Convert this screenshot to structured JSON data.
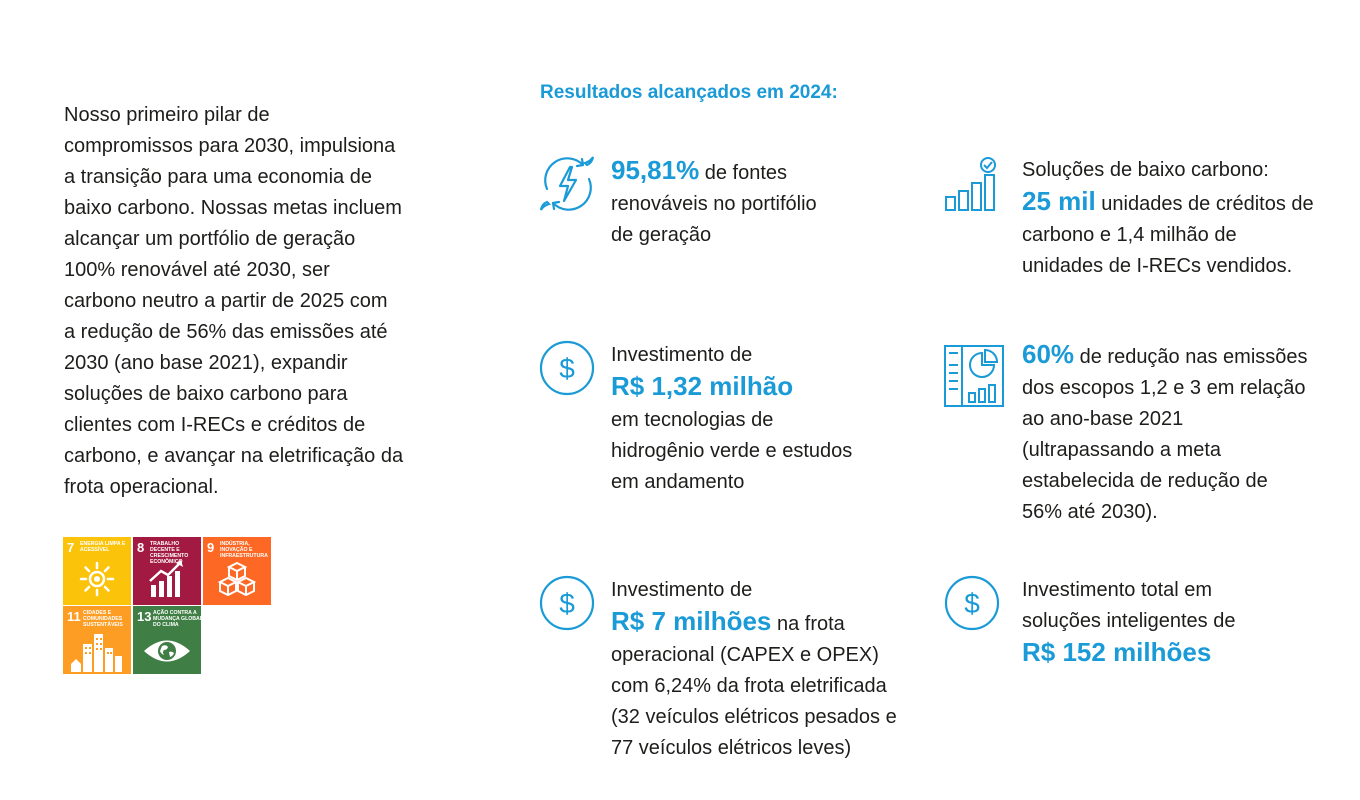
{
  "intro_text": "Nosso primeiro pilar de compromissos para 2030, impulsiona a transição para uma economia de baixo carbono. Nossas metas incluem alcançar um portfólio de geração 100% renovável até 2030, ser carbono neutro a partir de 2025 com a redução de 56% das emissões até 2030 (ano base 2021), expandir soluções de baixo carbono para clientes com I-RECs e créditos de carbono, e avançar na eletrificação da frota operacional.",
  "sdg": [
    {
      "number": "7",
      "label": "ENERGIA LIMPA E ACESSÍVEL",
      "color": "#fcc30b",
      "icon": "sun-icon"
    },
    {
      "number": "8",
      "label": "TRABALHO DECENTE E CRESCIMENTO ECONÔMICO",
      "color": "#a21942",
      "icon": "growth-chart-icon"
    },
    {
      "number": "9",
      "label": "INDÚSTRIA, INOVAÇÃO E INFRAESTRUTURA",
      "color": "#fd6925",
      "icon": "cubes-icon"
    },
    {
      "number": "11",
      "label": "CIDADES E COMUNIDADES SUSTENTÁVEIS",
      "color": "#fd9d24",
      "icon": "city-icon"
    },
    {
      "number": "13",
      "label": "AÇÃO CONTRA A MUDANÇA GLOBAL DO CLIMA",
      "color": "#3f7e44",
      "icon": "eye-globe-icon"
    }
  ],
  "heading": "Resultados alcançados em 2024:",
  "results": {
    "renewables": {
      "highlight": "95,81%",
      "text": " de fontes renováveis no portifólio de geração",
      "icon": "renewable-energy-icon"
    },
    "low_carbon": {
      "prefix": "Soluções de baixo carbono:",
      "highlight": "25 mil",
      "text": " unidades de créditos de carbono e 1,4 milhão de unidades de I-RECs vendidos.",
      "icon": "growth-chart-check-icon"
    },
    "hydrogen": {
      "prefix": "Investimento de",
      "highlight": "R$ 1,32 milhão",
      "text": "em tecnologias de hidrogênio verde e estudos em andamento",
      "icon": "dollar-circle-icon"
    },
    "emissions": {
      "highlight": "60%",
      "text": " de redução nas emissões dos escopos 1,2 e 3 em relação ao ano-base 2021 (ultrapassando a meta estabelecida de redução de 56% até 2030).",
      "icon": "report-chart-icon"
    },
    "fleet": {
      "prefix": "Investimento de",
      "highlight": "R$ 7 milhões",
      "text": " na frota operacional (CAPEX e OPEX) com 6,24% da frota eletrificada (32 veículos elétricos pesados e 77 veículos elétricos leves)",
      "icon": "dollar-circle-icon"
    },
    "smart": {
      "prefix": "Investimento total em soluções inteligentes de",
      "highlight": "R$ 152 milhões",
      "icon": "dollar-circle-icon"
    }
  },
  "colors": {
    "accent": "#1a9ad6",
    "text": "#1d1d1b"
  }
}
